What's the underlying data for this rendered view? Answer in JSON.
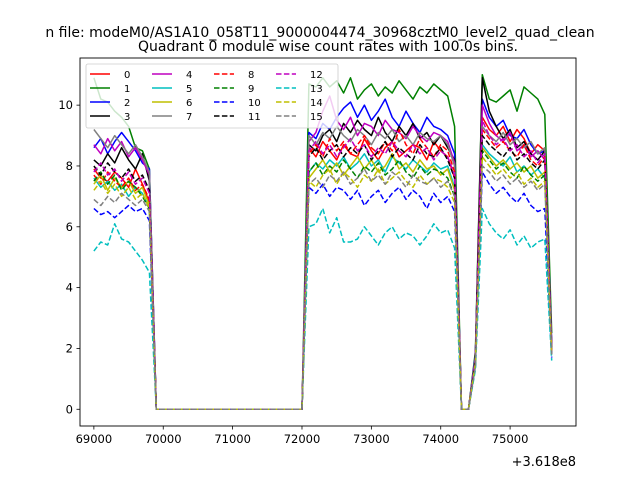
{
  "figure": {
    "suptitle": "n file: modeM0/AS1A10_058T11_9000004474_30968cztM0_level2_quad_clean",
    "title": "Quadrant 0 module wise count rates with 100.0s bins.",
    "offset_text": "+3.618e8"
  },
  "chart_data": {
    "type": "line",
    "title": "Quadrant 0 module wise count rates with 100.0s bins.",
    "xlabel": "",
    "ylabel": "",
    "x_offset": 361800000,
    "xlim": [
      68800,
      75950
    ],
    "ylim": [
      -0.55,
      11.55
    ],
    "xticks": [
      69000,
      70000,
      71000,
      72000,
      73000,
      74000,
      75000
    ],
    "yticks": [
      0,
      2,
      4,
      6,
      8,
      10
    ],
    "grid": false,
    "legend": {
      "position": "upper-left",
      "columns": 4
    },
    "x": [
      69000,
      69100,
      69200,
      69300,
      69400,
      69500,
      69600,
      69700,
      69800,
      69900,
      70000,
      70100,
      70200,
      70300,
      70400,
      70500,
      70600,
      70700,
      70800,
      70900,
      71000,
      71100,
      71200,
      71300,
      71400,
      71500,
      71600,
      71700,
      71800,
      71900,
      72000,
      72100,
      72200,
      72300,
      72400,
      72500,
      72600,
      72700,
      72800,
      72900,
      73000,
      73100,
      73200,
      73300,
      73400,
      73500,
      73600,
      73700,
      73800,
      73900,
      74000,
      74100,
      74200,
      74300,
      74400,
      74500,
      74600,
      74700,
      74800,
      74900,
      75000,
      75100,
      75200,
      75300,
      75400,
      75500,
      75600
    ],
    "series": [
      {
        "name": "0",
        "color": "#ff0000",
        "dash": "solid",
        "values": [
          7.9,
          7.6,
          7.5,
          7.8,
          7.6,
          7.3,
          7.9,
          7.4,
          6.8,
          0,
          0,
          0,
          0,
          0,
          0,
          0,
          0,
          0,
          0,
          0,
          0,
          0,
          0,
          0,
          0,
          0,
          0,
          0,
          0,
          0,
          0,
          8.6,
          8.3,
          8.8,
          8.5,
          8.2,
          8.7,
          8.4,
          8.3,
          8.9,
          8.5,
          8.2,
          8.6,
          8.8,
          8.3,
          8.5,
          8.7,
          8.6,
          8.2,
          8.8,
          8.5,
          8.3,
          7.6,
          0,
          0,
          1.6,
          9.6,
          9.2,
          9.0,
          9.3,
          8.8,
          9.2,
          8.9,
          8.4,
          8.7,
          8.5,
          2.0
        ]
      },
      {
        "name": "1",
        "color": "#008000",
        "dash": "solid",
        "values": [
          10.9,
          10.2,
          10.1,
          9.8,
          9.6,
          9.3,
          8.6,
          8.5,
          7.9,
          0,
          0,
          0,
          0,
          0,
          0,
          0,
          0,
          0,
          0,
          0,
          0,
          0,
          0,
          0,
          0,
          0,
          0,
          0,
          0,
          0,
          0,
          10.7,
          10.6,
          10.9,
          10.6,
          10.8,
          10.4,
          10.9,
          10.2,
          10.5,
          10.7,
          10.3,
          10.6,
          10.4,
          10.8,
          10.5,
          10.2,
          10.6,
          10.4,
          10.7,
          10.5,
          10.3,
          9.3,
          0,
          0,
          1.9,
          11.0,
          10.2,
          10.1,
          10.3,
          10.5,
          9.8,
          10.6,
          10.4,
          10.2,
          9.7,
          2.5
        ]
      },
      {
        "name": "2",
        "color": "#0000ff",
        "dash": "solid",
        "values": [
          8.6,
          8.9,
          8.4,
          8.8,
          9.1,
          8.8,
          8.5,
          8.1,
          7.9,
          0,
          0,
          0,
          0,
          0,
          0,
          0,
          0,
          0,
          0,
          0,
          0,
          0,
          0,
          0,
          0,
          0,
          0,
          0,
          0,
          0,
          0,
          9.1,
          8.9,
          9.4,
          9.2,
          9.6,
          9.9,
          10.1,
          9.6,
          10.0,
          9.5,
          9.8,
          10.2,
          9.6,
          9.3,
          9.8,
          9.4,
          9.1,
          9.6,
          9.3,
          9.2,
          9.0,
          8.4,
          0,
          0,
          1.8,
          10.2,
          9.6,
          9.3,
          9.5,
          9.0,
          8.9,
          9.2,
          8.7,
          8.4,
          8.5,
          2.2
        ]
      },
      {
        "name": "3",
        "color": "#000000",
        "dash": "solid",
        "values": [
          8.2,
          8.0,
          8.4,
          8.1,
          8.6,
          8.2,
          7.9,
          8.4,
          7.5,
          0,
          0,
          0,
          0,
          0,
          0,
          0,
          0,
          0,
          0,
          0,
          0,
          0,
          0,
          0,
          0,
          0,
          0,
          0,
          0,
          0,
          0,
          8.7,
          8.5,
          9.0,
          9.2,
          8.8,
          9.4,
          9.1,
          9.5,
          9.2,
          9.0,
          9.6,
          9.1,
          8.8,
          9.3,
          9.0,
          9.4,
          8.9,
          9.1,
          8.7,
          9.0,
          8.6,
          8.2,
          0,
          0,
          1.7,
          10.9,
          9.8,
          9.3,
          8.9,
          9.2,
          8.6,
          8.8,
          8.4,
          8.2,
          8.5,
          2.1
        ]
      },
      {
        "name": "4",
        "color": "#bf00bf",
        "dash": "solid",
        "values": [
          8.7,
          8.4,
          8.9,
          8.5,
          8.8,
          8.3,
          8.6,
          8.2,
          7.7,
          0,
          0,
          0,
          0,
          0,
          0,
          0,
          0,
          0,
          0,
          0,
          0,
          0,
          0,
          0,
          0,
          0,
          0,
          0,
          0,
          0,
          0,
          8.8,
          9.1,
          9.8,
          10.3,
          9.5,
          9.2,
          9.6,
          9.0,
          9.4,
          9.3,
          9.0,
          9.5,
          9.2,
          9.1,
          8.9,
          9.3,
          9.0,
          8.8,
          9.1,
          9.0,
          8.8,
          8.1,
          0,
          0,
          1.7,
          10.0,
          9.4,
          9.0,
          8.8,
          9.1,
          8.5,
          8.7,
          8.3,
          8.5,
          8.2,
          2.1
        ]
      },
      {
        "name": "5",
        "color": "#00bfbf",
        "dash": "solid",
        "values": [
          7.6,
          7.3,
          7.5,
          7.2,
          7.4,
          7.0,
          7.3,
          7.1,
          6.6,
          0,
          0,
          0,
          0,
          0,
          0,
          0,
          0,
          0,
          0,
          0,
          0,
          0,
          0,
          0,
          0,
          0,
          0,
          0,
          0,
          0,
          0,
          7.8,
          8.1,
          7.9,
          8.2,
          8.0,
          8.3,
          7.9,
          8.1,
          8.4,
          8.0,
          8.2,
          7.8,
          8.3,
          8.1,
          7.9,
          8.2,
          8.0,
          7.8,
          8.1,
          7.9,
          8.0,
          7.3,
          0,
          0,
          1.5,
          8.7,
          8.4,
          8.2,
          8.0,
          8.3,
          7.8,
          8.0,
          7.7,
          7.9,
          7.6,
          1.9
        ]
      },
      {
        "name": "6",
        "color": "#bfbf00",
        "dash": "solid",
        "values": [
          7.4,
          7.7,
          7.2,
          7.6,
          7.3,
          7.5,
          7.1,
          7.3,
          6.7,
          0,
          0,
          0,
          0,
          0,
          0,
          0,
          0,
          0,
          0,
          0,
          0,
          0,
          0,
          0,
          0,
          0,
          0,
          0,
          0,
          0,
          0,
          7.6,
          7.9,
          8.2,
          7.8,
          8.1,
          7.7,
          8.0,
          8.3,
          7.9,
          8.2,
          7.8,
          8.0,
          8.4,
          7.9,
          8.1,
          7.8,
          8.2,
          7.9,
          8.0,
          7.7,
          7.9,
          7.2,
          0,
          0,
          1.5,
          8.6,
          8.3,
          8.0,
          8.2,
          7.9,
          8.1,
          7.8,
          8.0,
          7.6,
          7.8,
          1.9
        ]
      },
      {
        "name": "7",
        "color": "#808080",
        "dash": "solid",
        "values": [
          9.2,
          8.9,
          8.6,
          9.0,
          8.7,
          8.4,
          8.7,
          8.3,
          7.8,
          0,
          0,
          0,
          0,
          0,
          0,
          0,
          0,
          0,
          0,
          0,
          0,
          0,
          0,
          0,
          0,
          0,
          0,
          0,
          0,
          0,
          0,
          9.0,
          8.7,
          9.1,
          8.9,
          9.3,
          9.0,
          8.8,
          9.2,
          9.0,
          8.7,
          9.1,
          8.9,
          9.2,
          8.8,
          9.0,
          8.7,
          9.1,
          8.9,
          8.8,
          9.0,
          8.7,
          8.0,
          0,
          0,
          1.7,
          9.3,
          9.0,
          8.8,
          9.1,
          8.7,
          8.9,
          8.6,
          8.8,
          8.4,
          8.6,
          2.0
        ]
      },
      {
        "name": "8",
        "color": "#ff0000",
        "dash": "dashed",
        "values": [
          7.7,
          7.4,
          7.8,
          7.5,
          7.3,
          7.6,
          7.2,
          7.4,
          6.9,
          0,
          0,
          0,
          0,
          0,
          0,
          0,
          0,
          0,
          0,
          0,
          0,
          0,
          0,
          0,
          0,
          0,
          0,
          0,
          0,
          0,
          0,
          8.4,
          8.7,
          8.3,
          8.9,
          8.5,
          8.8,
          8.4,
          8.7,
          9.0,
          8.6,
          8.4,
          8.8,
          8.5,
          9.2,
          8.7,
          8.4,
          8.9,
          8.6,
          8.3,
          8.7,
          8.5,
          7.8,
          0,
          0,
          1.6,
          9.2,
          8.9,
          8.6,
          8.8,
          8.5,
          8.3,
          8.7,
          8.2,
          8.0,
          8.3,
          1.9
        ]
      },
      {
        "name": "9",
        "color": "#008000",
        "dash": "dashed",
        "values": [
          7.5,
          7.8,
          7.4,
          7.7,
          7.2,
          7.5,
          7.3,
          7.0,
          6.6,
          0,
          0,
          0,
          0,
          0,
          0,
          0,
          0,
          0,
          0,
          0,
          0,
          0,
          0,
          0,
          0,
          0,
          0,
          0,
          0,
          0,
          0,
          7.8,
          8.1,
          7.7,
          8.0,
          7.8,
          8.2,
          7.9,
          7.6,
          8.0,
          7.8,
          8.1,
          7.7,
          7.9,
          8.2,
          7.8,
          7.6,
          8.0,
          7.7,
          7.9,
          7.8,
          7.6,
          7.0,
          0,
          0,
          1.5,
          8.5,
          8.2,
          7.9,
          8.1,
          7.8,
          7.6,
          8.0,
          7.7,
          7.5,
          7.7,
          1.8
        ]
      },
      {
        "name": "10",
        "color": "#0000ff",
        "dash": "dashed",
        "values": [
          6.6,
          6.4,
          6.5,
          6.3,
          6.5,
          6.7,
          6.5,
          6.6,
          6.2,
          0,
          0,
          0,
          0,
          0,
          0,
          0,
          0,
          0,
          0,
          0,
          0,
          0,
          0,
          0,
          0,
          0,
          0,
          0,
          0,
          0,
          0,
          7.3,
          7.1,
          7.4,
          7.0,
          7.3,
          7.2,
          6.9,
          7.2,
          6.7,
          7.0,
          7.2,
          6.8,
          7.1,
          7.3,
          6.9,
          7.2,
          7.0,
          6.6,
          7.1,
          6.8,
          7.0,
          6.5,
          0,
          0,
          1.4,
          7.8,
          7.4,
          7.1,
          7.3,
          7.0,
          6.8,
          7.1,
          6.7,
          6.5,
          6.6,
          1.7
        ]
      },
      {
        "name": "11",
        "color": "#000000",
        "dash": "dashed",
        "values": [
          8.0,
          7.7,
          8.1,
          7.8,
          7.6,
          7.9,
          7.5,
          7.7,
          7.2,
          0,
          0,
          0,
          0,
          0,
          0,
          0,
          0,
          0,
          0,
          0,
          0,
          0,
          0,
          0,
          0,
          0,
          0,
          0,
          0,
          0,
          0,
          8.3,
          8.6,
          8.2,
          8.5,
          8.7,
          8.3,
          8.6,
          8.4,
          8.7,
          8.2,
          8.5,
          8.8,
          8.3,
          8.6,
          8.4,
          8.2,
          8.7,
          8.4,
          8.3,
          8.6,
          8.2,
          7.6,
          0,
          0,
          1.6,
          9.0,
          8.7,
          8.5,
          8.3,
          8.6,
          8.2,
          8.4,
          8.1,
          7.9,
          8.2,
          1.9
        ]
      },
      {
        "name": "12",
        "color": "#bf00bf",
        "dash": "dashed",
        "values": [
          7.8,
          8.1,
          7.7,
          7.9,
          7.5,
          7.8,
          7.4,
          7.6,
          7.1,
          0,
          0,
          0,
          0,
          0,
          0,
          0,
          0,
          0,
          0,
          0,
          0,
          0,
          0,
          0,
          0,
          0,
          0,
          0,
          0,
          0,
          0,
          8.5,
          8.8,
          8.4,
          8.7,
          8.3,
          8.6,
          8.9,
          8.5,
          8.7,
          8.3,
          8.6,
          8.4,
          8.8,
          8.5,
          8.3,
          8.7,
          8.4,
          8.6,
          8.2,
          8.5,
          8.3,
          7.7,
          0,
          0,
          1.6,
          9.5,
          9.0,
          8.7,
          8.9,
          8.5,
          8.7,
          8.3,
          8.5,
          8.1,
          8.4,
          1.9
        ]
      },
      {
        "name": "13",
        "color": "#00bfbf",
        "dash": "dashed",
        "values": [
          5.2,
          5.5,
          5.4,
          6.1,
          5.6,
          5.5,
          5.2,
          4.9,
          4.5,
          0,
          0,
          0,
          0,
          0,
          0,
          0,
          0,
          0,
          0,
          0,
          0,
          0,
          0,
          0,
          0,
          0,
          0,
          0,
          0,
          0,
          0,
          6.0,
          6.1,
          6.6,
          5.8,
          6.3,
          5.5,
          5.5,
          5.6,
          6.0,
          5.7,
          5.4,
          5.8,
          6.0,
          5.6,
          5.8,
          5.7,
          5.4,
          5.7,
          6.1,
          5.8,
          5.9,
          5.3,
          0,
          0,
          1.3,
          6.6,
          6.1,
          5.8,
          5.6,
          5.9,
          5.4,
          5.7,
          5.3,
          5.5,
          5.6,
          1.6
        ]
      },
      {
        "name": "14",
        "color": "#bfbf00",
        "dash": "dashed",
        "values": [
          7.2,
          7.5,
          7.1,
          7.4,
          7.0,
          7.3,
          6.9,
          7.1,
          6.6,
          0,
          0,
          0,
          0,
          0,
          0,
          0,
          0,
          0,
          0,
          0,
          0,
          0,
          0,
          0,
          0,
          0,
          0,
          0,
          0,
          0,
          0,
          7.5,
          7.3,
          7.7,
          7.9,
          7.4,
          7.8,
          7.6,
          7.3,
          7.7,
          7.5,
          7.9,
          7.4,
          7.6,
          7.8,
          7.5,
          7.3,
          7.7,
          7.4,
          7.6,
          7.5,
          7.3,
          6.8,
          0,
          0,
          1.5,
          8.3,
          8.0,
          7.7,
          7.9,
          7.6,
          7.8,
          7.4,
          7.6,
          7.3,
          7.5,
          1.8
        ]
      },
      {
        "name": "15",
        "color": "#808080",
        "dash": "dashed",
        "values": [
          6.9,
          6.7,
          7.0,
          6.8,
          7.1,
          6.9,
          6.7,
          6.9,
          6.5,
          0,
          0,
          0,
          0,
          0,
          0,
          0,
          0,
          0,
          0,
          0,
          0,
          0,
          0,
          0,
          0,
          0,
          0,
          0,
          0,
          0,
          0,
          7.4,
          7.6,
          7.3,
          7.7,
          7.5,
          7.8,
          7.4,
          7.6,
          7.9,
          7.5,
          7.7,
          7.4,
          7.8,
          7.6,
          7.3,
          7.7,
          7.5,
          7.4,
          7.6,
          7.3,
          7.5,
          7.0,
          0,
          0,
          1.4,
          8.0,
          7.8,
          7.5,
          7.7,
          7.4,
          7.6,
          7.3,
          7.5,
          7.2,
          7.4,
          1.8
        ]
      }
    ]
  }
}
